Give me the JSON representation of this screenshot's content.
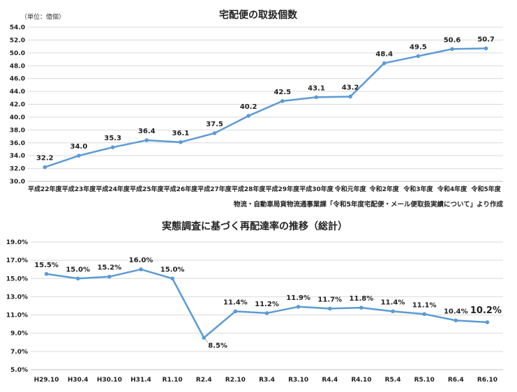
{
  "colors": {
    "line": "#5b9bd5",
    "highlight": "#ff0000"
  },
  "chart_data": [
    {
      "type": "line",
      "title": "宅配便の取扱個数",
      "unit_label": "（単位：億個）",
      "source": "物流・自動車局貨物流通事業課「令和5年度宅配便・メール便取扱実績について」より作成",
      "categories": [
        "平成22年度",
        "平成23年度",
        "平成24年度",
        "平成25年度",
        "平成26年度",
        "平成27年度",
        "平成28年度",
        "平成29年度",
        "平成30年度",
        "令和元年度",
        "令和2年度",
        "令和3年度",
        "令和4年度",
        "令和5年度"
      ],
      "values": [
        32.2,
        34.0,
        35.3,
        36.4,
        36.1,
        37.5,
        40.2,
        42.5,
        43.1,
        43.2,
        48.4,
        49.5,
        50.6,
        50.7
      ],
      "data_labels": [
        "32.2",
        "34.0",
        "35.3",
        "36.4",
        "36.1",
        "37.5",
        "40.2",
        "42.5",
        "43.1",
        "43.2",
        "48.4",
        "49.5",
        "50.6",
        "50.7"
      ],
      "ylim": [
        30.0,
        54.0
      ],
      "yticks": [
        "30.0",
        "32.0",
        "34.0",
        "36.0",
        "38.0",
        "40.0",
        "42.0",
        "44.0",
        "46.0",
        "48.0",
        "50.0",
        "52.0",
        "54.0"
      ],
      "grid": true,
      "legend": "none"
    },
    {
      "type": "line",
      "title": "実態調査に基づく再配達率の推移（総計）",
      "categories": [
        "H29.10",
        "H30.4",
        "H30.10",
        "H31.4",
        "R1.10",
        "R2.4",
        "R2.10",
        "R3.4",
        "R3.10",
        "R4.4",
        "R4.10",
        "R5.4",
        "R5.10",
        "R6.4",
        "R6.10"
      ],
      "values": [
        15.5,
        15.0,
        15.2,
        16.0,
        15.0,
        8.5,
        11.4,
        11.2,
        11.9,
        11.7,
        11.8,
        11.4,
        11.1,
        10.4,
        10.2
      ],
      "data_labels": [
        "15.5%",
        "15.0%",
        "15.2%",
        "16.0%",
        "15.0%",
        "8.5%",
        "11.4%",
        "11.2%",
        "11.9%",
        "11.7%",
        "11.8%",
        "11.4%",
        "11.1%",
        "10.4%",
        "10.2%"
      ],
      "ylim": [
        5.0,
        19.0
      ],
      "yticks": [
        "5.0%",
        "7.0%",
        "9.0%",
        "11.0%",
        "13.0%",
        "15.0%",
        "17.0%",
        "19.0%"
      ],
      "grid": true,
      "legend": "none"
    }
  ]
}
